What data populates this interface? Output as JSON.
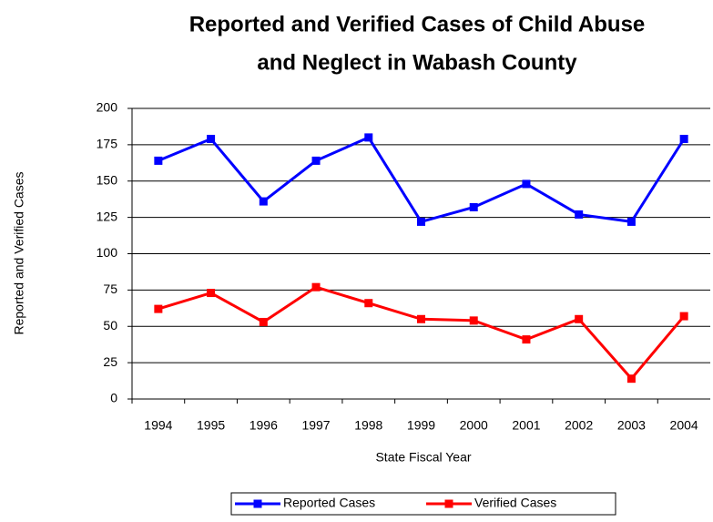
{
  "chart_data": {
    "type": "line",
    "title": "Reported and Verified Cases of Child Abuse and Neglect in Wabash County",
    "x_label": "State Fiscal Year",
    "y_label": "Reported and Verified Cases",
    "categories": [
      "1994",
      "1995",
      "1996",
      "1997",
      "1998",
      "1999",
      "2000",
      "2001",
      "2002",
      "2003",
      "2004"
    ],
    "series": [
      {
        "name": "Reported Cases",
        "color": "#0000ff",
        "values": [
          164,
          179,
          136,
          164,
          180,
          122,
          132,
          148,
          127,
          122,
          179
        ]
      },
      {
        "name": "Verified Cases",
        "color": "#ff0000",
        "values": [
          62,
          73,
          53,
          77,
          66,
          55,
          54,
          41,
          55,
          14,
          57
        ]
      }
    ],
    "ylim": [
      0,
      200
    ],
    "yticks": [
      0,
      25,
      50,
      75,
      100,
      125,
      150,
      175,
      200
    ],
    "grid": true,
    "legend": "bottom"
  }
}
